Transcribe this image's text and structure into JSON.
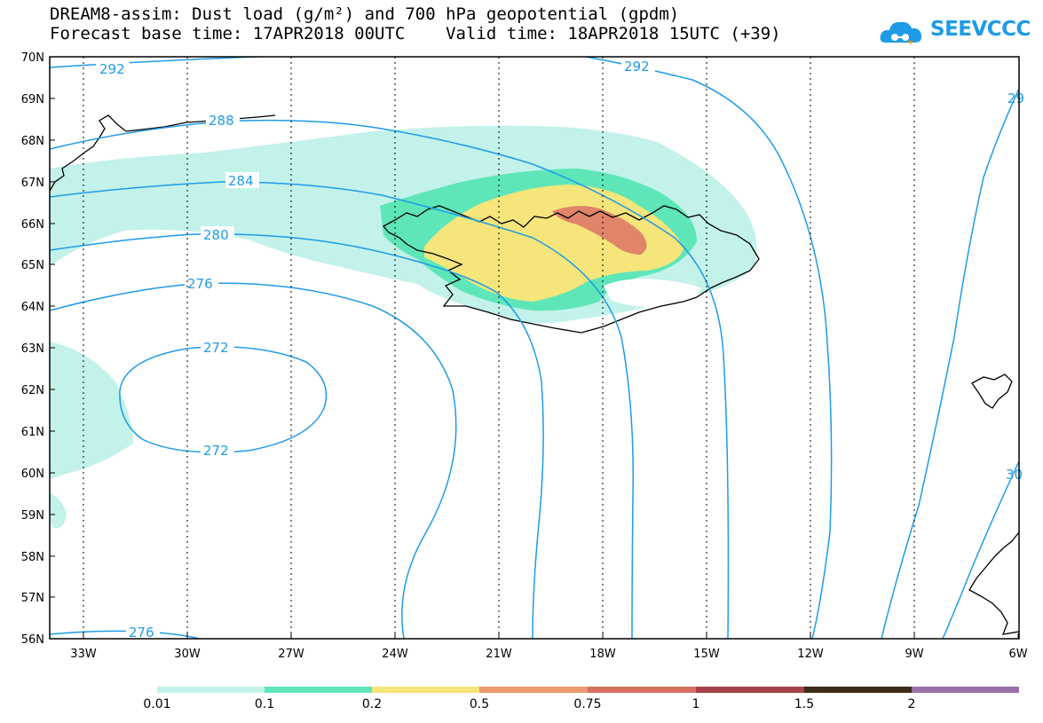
{
  "header": {
    "title_line1": "DREAM8-assim: Dust load (g/m²) and 700 hPa geopotential (gpdm)",
    "title_line2": "Forecast base time: 17APR2018 00UTC    Valid time: 18APR2018 15UTC (+39)",
    "logo_text": "SEEVCCC"
  },
  "axes": {
    "lat_labels": [
      "70N",
      "69N",
      "68N",
      "67N",
      "66N",
      "65N",
      "64N",
      "63N",
      "62N",
      "61N",
      "60N",
      "59N",
      "58N",
      "57N",
      "56N"
    ],
    "lon_labels": [
      "33W",
      "30W",
      "27W",
      "24W",
      "21W",
      "18W",
      "15W",
      "12W",
      "9W",
      "6W"
    ]
  },
  "contours": {
    "color": "#1e9be8",
    "labels": [
      "292",
      "292",
      "288",
      "284",
      "280",
      "276",
      "272",
      "272",
      "276",
      "29",
      "30"
    ]
  },
  "colorbar": {
    "colors": [
      "#c2f2e9",
      "#5ee6b8",
      "#f5e57a",
      "#ea9a6e",
      "#d67060",
      "#a8424a",
      "#7a0030",
      "#3e2a18",
      "#9a6ea8"
    ],
    "labels": [
      "0.01",
      "0.1",
      "0.2",
      "0.5",
      "0.75",
      "1",
      "1.5",
      "2"
    ]
  },
  "dust_colors": {
    "level1": "#c2f2e9",
    "level2": "#5ee6b8",
    "level3": "#f5e57a",
    "level4": "#e0846a"
  }
}
